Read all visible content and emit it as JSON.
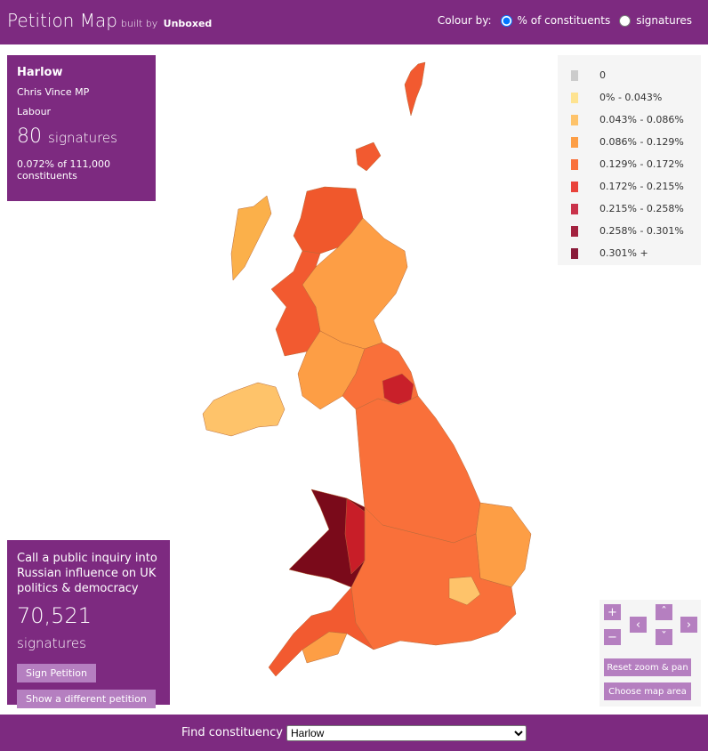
{
  "header": {
    "title": "Petition Map",
    "subtitle": "built by",
    "brand": "Unboxed",
    "colour_by_label": "Colour by:",
    "colour_by_options": [
      "% of constituents",
      "signatures"
    ]
  },
  "constituency": {
    "name": "Harlow",
    "mp": "Chris Vince MP",
    "party": "Labour",
    "count": "80",
    "count_unit": "signatures",
    "share": "0.072% of 111,000 constituents"
  },
  "legend": {
    "items": [
      {
        "label": "0",
        "color": "#cccccc"
      },
      {
        "label": "0% - 0.043%",
        "color": "#fee391"
      },
      {
        "label": "0.043% - 0.086%",
        "color": "#fec36a"
      },
      {
        "label": "0.086% - 0.129%",
        "color": "#fd9e45"
      },
      {
        "label": "0.129% - 0.172%",
        "color": "#f9703a"
      },
      {
        "label": "0.172% - 0.215%",
        "color": "#e9433b"
      },
      {
        "label": "0.215% - 0.258%",
        "color": "#c9324a"
      },
      {
        "label": "0.258% - 0.301%",
        "color": "#a3223f"
      },
      {
        "label": "0.301% +",
        "color": "#8a1c3a"
      }
    ]
  },
  "petition": {
    "title": "Call a public inquiry into Russian influence on UK politics & democracy",
    "count": "70,521",
    "count_unit": "signatures",
    "buttons": [
      "Sign Petition",
      "Show a different petition"
    ]
  },
  "controls": {
    "zoom": [
      "+",
      "−"
    ],
    "pan": [
      "‹",
      "›",
      "ˆ",
      "ˇ"
    ],
    "buttons": [
      "Reset zoom & pan",
      "Choose map area"
    ]
  },
  "footer": {
    "label": "Find constituency",
    "selected": "Harlow"
  }
}
